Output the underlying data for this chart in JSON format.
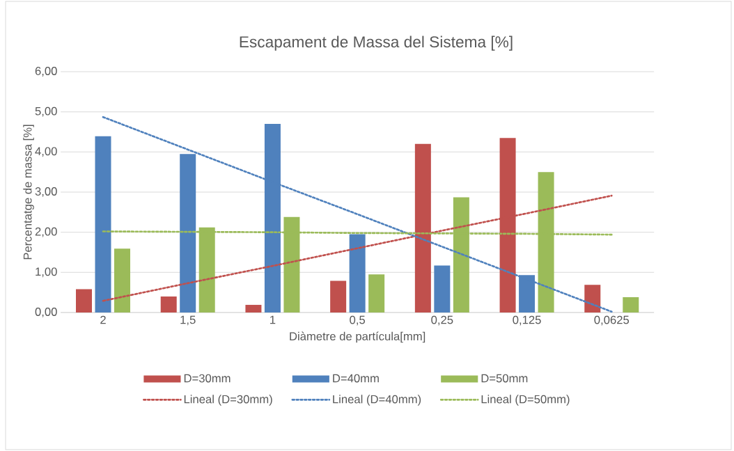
{
  "chart_data": {
    "type": "bar",
    "title": "Escapament de Massa del Sistema [%]",
    "xlabel": "Diàmetre de partícula[mm]",
    "ylabel": "Percentatge de massa [%]",
    "categories": [
      "2",
      "1,5",
      "1",
      "0,5",
      "0,25",
      "0,125",
      "0,0625"
    ],
    "series": [
      {
        "name": "D=30mm",
        "color": "#c0504d",
        "values": [
          0.58,
          0.4,
          0.19,
          0.79,
          4.2,
          4.35,
          0.69
        ]
      },
      {
        "name": "D=40mm",
        "color": "#4f81bd",
        "values": [
          4.39,
          3.95,
          4.7,
          1.95,
          1.17,
          0.93,
          null
        ]
      },
      {
        "name": "D=50mm",
        "color": "#9bbb59",
        "values": [
          1.59,
          2.12,
          2.38,
          0.95,
          2.87,
          3.5,
          0.38
        ]
      },
      {
        "name": "Lineal (D=30mm)",
        "type": "line",
        "line_style": "dotted",
        "color": "#c0504d",
        "values": [
          0.29,
          0.73,
          1.16,
          1.6,
          2.04,
          2.47,
          2.91
        ]
      },
      {
        "name": "Lineal (D=40mm)",
        "type": "line",
        "line_style": "dotted",
        "color": "#4f81bd",
        "values": [
          4.87,
          4.06,
          3.25,
          2.45,
          1.64,
          0.83,
          0.02
        ]
      },
      {
        "name": "Lineal (D=50mm)",
        "type": "line",
        "line_style": "dotted",
        "color": "#9bbb59",
        "values": [
          2.02,
          2.01,
          2.0,
          1.98,
          1.97,
          1.96,
          1.94
        ]
      }
    ],
    "ylim": [
      0,
      6
    ],
    "yticks": [
      {
        "value": 0,
        "label": "0,00"
      },
      {
        "value": 1,
        "label": "1,00"
      },
      {
        "value": 2,
        "label": "2,00"
      },
      {
        "value": 3,
        "label": "3,00"
      },
      {
        "value": 4,
        "label": "4,00"
      },
      {
        "value": 5,
        "label": "5,00"
      },
      {
        "value": 6,
        "label": "6,00"
      }
    ],
    "grid": "y",
    "legend": "bottom"
  }
}
